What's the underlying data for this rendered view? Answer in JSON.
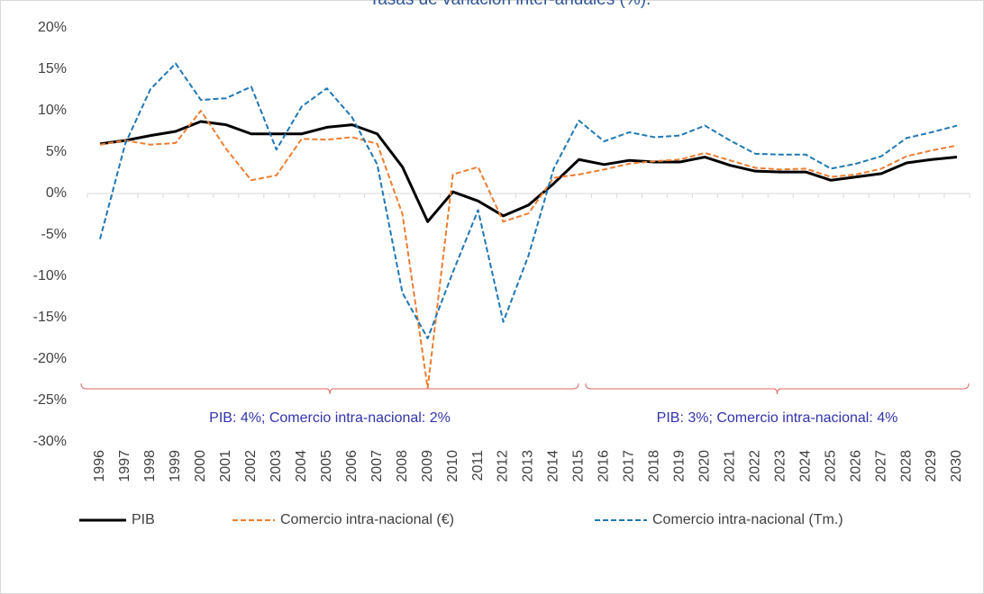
{
  "chart_data": {
    "type": "line",
    "title": "Tasas de variación inter-anuales (%).",
    "categories": [
      "1996",
      "1997",
      "1998",
      "1999",
      "2000",
      "2001",
      "2002",
      "2003",
      "2004",
      "2005",
      "2006",
      "2007",
      "2008",
      "2009",
      "2010",
      "2011",
      "2012",
      "2013",
      "2014",
      "2015",
      "2016",
      "2017",
      "2018",
      "2019",
      "2020",
      "2021",
      "2022",
      "2023",
      "2024",
      "2025",
      "2026",
      "2027",
      "2028",
      "2029",
      "2030"
    ],
    "series": [
      {
        "name": "PIB",
        "color": "#000000",
        "style": "solid",
        "values": [
          6.0,
          6.4,
          7.0,
          7.5,
          8.7,
          8.3,
          7.2,
          7.2,
          7.2,
          8.0,
          8.3,
          7.2,
          3.2,
          -3.4,
          0.2,
          -0.9,
          -2.7,
          -1.4,
          1.2,
          4.1,
          3.5,
          4.0,
          3.8,
          3.8,
          4.4,
          3.4,
          2.7,
          2.6,
          2.6,
          1.6,
          2.0,
          2.4,
          3.7,
          4.1,
          4.4
        ]
      },
      {
        "name": "Comercio intra-nacional (€)",
        "color": "#ed7d31",
        "style": "dashed",
        "values": [
          5.9,
          6.4,
          5.9,
          6.1,
          10.0,
          5.4,
          1.6,
          2.2,
          6.6,
          6.5,
          6.8,
          6.0,
          -2.5,
          -23.5,
          2.3,
          3.2,
          -3.4,
          -2.4,
          1.9,
          2.3,
          2.9,
          3.6,
          3.9,
          4.1,
          4.9,
          4.0,
          3.1,
          2.9,
          3.0,
          2.0,
          2.3,
          3.0,
          4.5,
          5.2,
          5.8
        ]
      },
      {
        "name": "Comercio intra-nacional (Tm.)",
        "color": "#1f77b4",
        "style": "dashed",
        "values": [
          -5.5,
          6.0,
          12.6,
          15.7,
          11.3,
          11.5,
          12.9,
          5.3,
          10.5,
          12.7,
          9.2,
          3.5,
          -12.0,
          -17.5,
          -9.5,
          -2.0,
          -15.5,
          -7.5,
          3.0,
          8.8,
          6.3,
          7.4,
          6.8,
          7.0,
          8.2,
          6.4,
          4.8,
          4.7,
          4.7,
          3.0,
          3.6,
          4.5,
          6.7,
          7.4,
          8.2
        ]
      }
    ],
    "ylim": [
      -30,
      20
    ],
    "yticks": [
      {
        "value": -30,
        "label": "-30%"
      },
      {
        "value": -25,
        "label": "-25%"
      },
      {
        "value": -20,
        "label": "-20%"
      },
      {
        "value": -15,
        "label": "-15%"
      },
      {
        "value": -10,
        "label": "-10%"
      },
      {
        "value": -5,
        "label": "-5%"
      },
      {
        "value": 0,
        "label": "0%"
      },
      {
        "value": 5,
        "label": "5%"
      },
      {
        "value": 10,
        "label": "10%"
      },
      {
        "value": 15,
        "label": "15%"
      },
      {
        "value": 20,
        "label": "20%"
      }
    ],
    "grid": false,
    "legend": "bottom",
    "annotations": [
      "PIB: 4%; Comercio intra-nacional: 2%",
      "PIB: 3%; Comercio intra-nacional: 4%"
    ]
  }
}
